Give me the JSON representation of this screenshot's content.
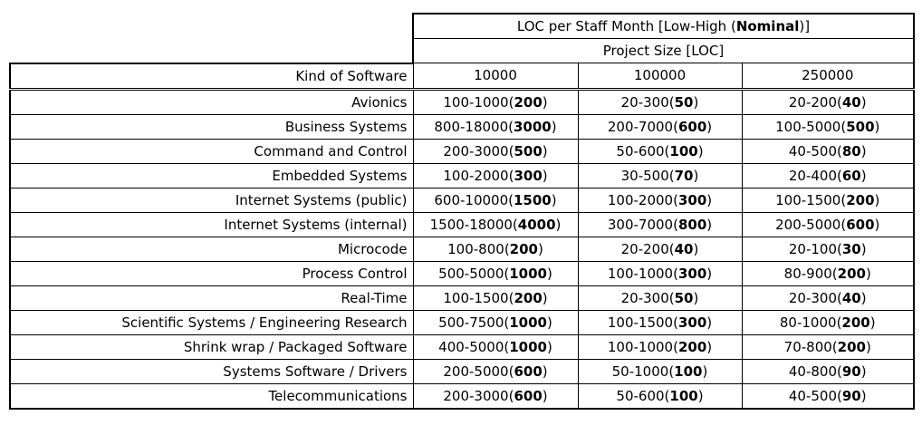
{
  "table": {
    "title": {
      "prefix": "LOC per Staff Month [Low-High (",
      "bold": "Nominal",
      "suffix": ")]"
    },
    "subtitle": "Project Size [LOC]",
    "row_header": "Kind of Software",
    "columns": [
      "10000",
      "100000",
      "250000"
    ],
    "rows": [
      {
        "label": "Avionics",
        "cells": [
          {
            "range": "100-1000",
            "nominal": "200"
          },
          {
            "range": "20-300",
            "nominal": "50"
          },
          {
            "range": "20-200",
            "nominal": "40"
          }
        ]
      },
      {
        "label": "Business Systems",
        "cells": [
          {
            "range": "800-18000",
            "nominal": "3000"
          },
          {
            "range": "200-7000",
            "nominal": "600"
          },
          {
            "range": "100-5000",
            "nominal": "500"
          }
        ]
      },
      {
        "label": "Command and Control",
        "cells": [
          {
            "range": "200-3000",
            "nominal": "500"
          },
          {
            "range": "50-600",
            "nominal": "100"
          },
          {
            "range": "40-500",
            "nominal": "80"
          }
        ]
      },
      {
        "label": "Embedded Systems",
        "cells": [
          {
            "range": "100-2000",
            "nominal": "300"
          },
          {
            "range": "30-500",
            "nominal": "70"
          },
          {
            "range": "20-400",
            "nominal": "60"
          }
        ]
      },
      {
        "label": "Internet Systems (public)",
        "cells": [
          {
            "range": "600-10000",
            "nominal": "1500"
          },
          {
            "range": "100-2000",
            "nominal": "300"
          },
          {
            "range": "100-1500",
            "nominal": "200"
          }
        ]
      },
      {
        "label": "Internet Systems (internal)",
        "cells": [
          {
            "range": "1500-18000",
            "nominal": "4000"
          },
          {
            "range": "300-7000",
            "nominal": "800"
          },
          {
            "range": "200-5000",
            "nominal": "600"
          }
        ]
      },
      {
        "label": "Microcode",
        "cells": [
          {
            "range": "100-800",
            "nominal": "200"
          },
          {
            "range": "20-200",
            "nominal": "40"
          },
          {
            "range": "20-100",
            "nominal": "30"
          }
        ]
      },
      {
        "label": "Process Control",
        "cells": [
          {
            "range": "500-5000",
            "nominal": "1000"
          },
          {
            "range": "100-1000",
            "nominal": "300"
          },
          {
            "range": "80-900",
            "nominal": "200"
          }
        ]
      },
      {
        "label": "Real-Time",
        "cells": [
          {
            "range": "100-1500",
            "nominal": "200"
          },
          {
            "range": "20-300",
            "nominal": "50"
          },
          {
            "range": "20-300",
            "nominal": "40"
          }
        ]
      },
      {
        "label": "Scientific Systems / Engineering Research",
        "cells": [
          {
            "range": "500-7500",
            "nominal": "1000"
          },
          {
            "range": "100-1500",
            "nominal": "300"
          },
          {
            "range": "80-1000",
            "nominal": "200"
          }
        ]
      },
      {
        "label": "Shrink wrap / Packaged Software",
        "cells": [
          {
            "range": "400-5000",
            "nominal": "1000"
          },
          {
            "range": "100-1000",
            "nominal": "200"
          },
          {
            "range": "70-800",
            "nominal": "200"
          }
        ]
      },
      {
        "label": "Systems Software / Drivers",
        "cells": [
          {
            "range": "200-5000",
            "nominal": "600"
          },
          {
            "range": "50-1000",
            "nominal": "100"
          },
          {
            "range": "40-800",
            "nominal": "90"
          }
        ]
      },
      {
        "label": "Telecommunications",
        "cells": [
          {
            "range": "200-3000",
            "nominal": "600"
          },
          {
            "range": "50-600",
            "nominal": "100"
          },
          {
            "range": "40-500",
            "nominal": "90"
          }
        ]
      }
    ]
  }
}
